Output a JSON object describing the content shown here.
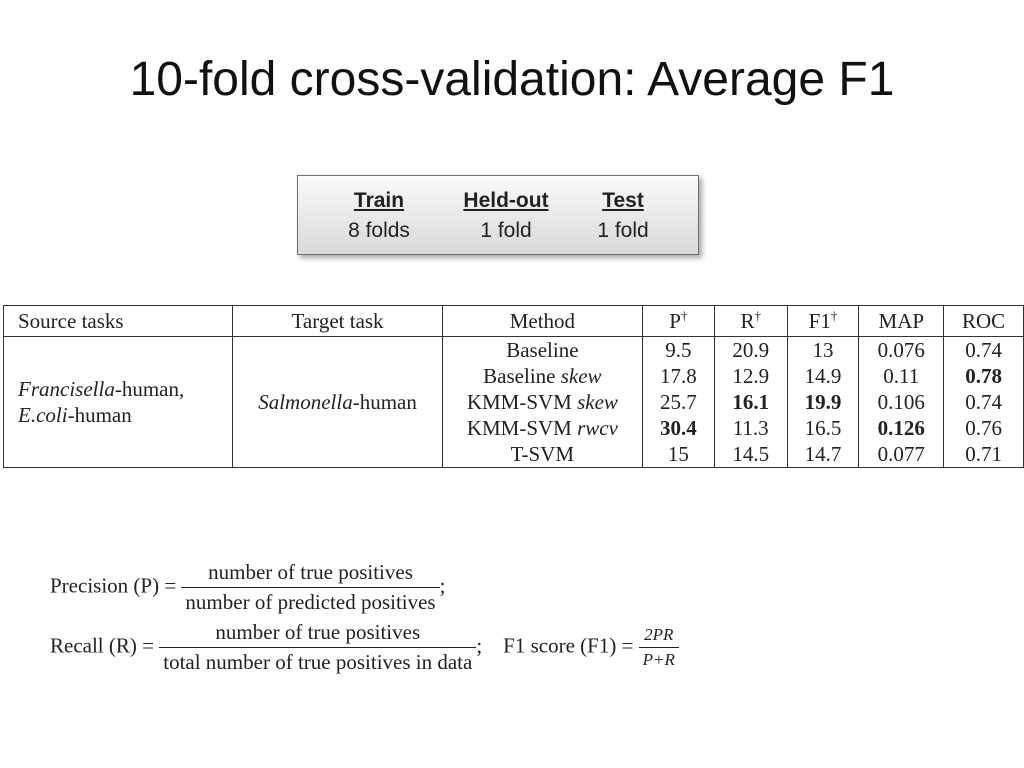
{
  "slide": {
    "title": "10-fold cross-validation: Average F1"
  },
  "split": {
    "columns": [
      {
        "header": "Train",
        "value": "8 folds"
      },
      {
        "header": "Held-out",
        "value": "1 fold"
      },
      {
        "header": "Test",
        "value": "1 fold"
      }
    ]
  },
  "table": {
    "headers": [
      "Source tasks",
      "Target task",
      "Method",
      "P",
      "R",
      "F1",
      "MAP",
      "ROC"
    ],
    "dagger": "†",
    "source_tasks": {
      "line1_italic": "Francisella",
      "line1_rest": "-human,",
      "line2_italic": "E.coli",
      "line2_rest": "-human"
    },
    "target_task": {
      "italic": "Salmonella",
      "rest": "-human"
    },
    "methods": [
      {
        "name": "Baseline",
        "suffix": ""
      },
      {
        "name": "Baseline ",
        "suffix": "skew"
      },
      {
        "name": "KMM-SVM ",
        "suffix": "skew"
      },
      {
        "name": "KMM-SVM ",
        "suffix": "rwcv"
      },
      {
        "name": "T-SVM",
        "suffix": ""
      }
    ],
    "P": [
      "9.5",
      "17.8",
      "25.7",
      "30.4",
      "15"
    ],
    "R": [
      "20.9",
      "12.9",
      "16.1",
      "11.3",
      "14.5"
    ],
    "F1": [
      "13",
      "14.9",
      "19.9",
      "16.5",
      "14.7"
    ],
    "MAP": [
      "0.076",
      "0.11",
      "0.106",
      "0.126",
      "0.077"
    ],
    "ROC": [
      "0.74",
      "0.78",
      "0.74",
      "0.76",
      "0.71"
    ],
    "bold": {
      "P": [
        3
      ],
      "R": [
        2
      ],
      "F1": [
        2
      ],
      "MAP": [
        3
      ],
      "ROC": [
        1
      ]
    }
  },
  "formulas": {
    "precision_label": "Precision (P) =",
    "precision_num": "number of true positives",
    "precision_den": "number of predicted positives",
    "precision_end": ";",
    "recall_label": "Recall (R) =",
    "recall_num": "number of true positives",
    "recall_den": "total number of true positives in data",
    "recall_end": ";",
    "f1_label": "F1 score (F1) =",
    "f1_num": "2PR",
    "f1_den": "P+R"
  }
}
